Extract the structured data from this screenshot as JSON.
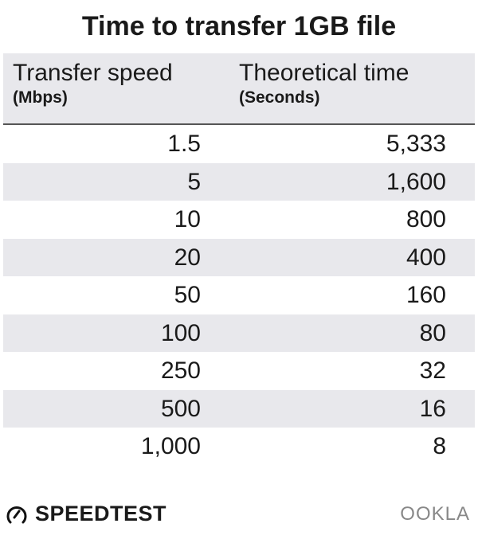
{
  "chart_data": {
    "type": "table",
    "title": "Time to transfer 1GB file",
    "columns": [
      {
        "label": "Transfer speed",
        "unit": "(Mbps)"
      },
      {
        "label": "Theoretical time",
        "unit": "(Seconds)"
      }
    ],
    "rows": [
      [
        "1.5",
        "5,333"
      ],
      [
        "5",
        "1,600"
      ],
      [
        "10",
        "800"
      ],
      [
        "20",
        "400"
      ],
      [
        "50",
        "160"
      ],
      [
        "100",
        "80"
      ],
      [
        "250",
        "32"
      ],
      [
        "500",
        "16"
      ],
      [
        "1,000",
        "8"
      ]
    ],
    "stripe_color": "#e8e8ec"
  },
  "branding": {
    "left": "SPEEDTEST",
    "right": "OOKLA"
  }
}
